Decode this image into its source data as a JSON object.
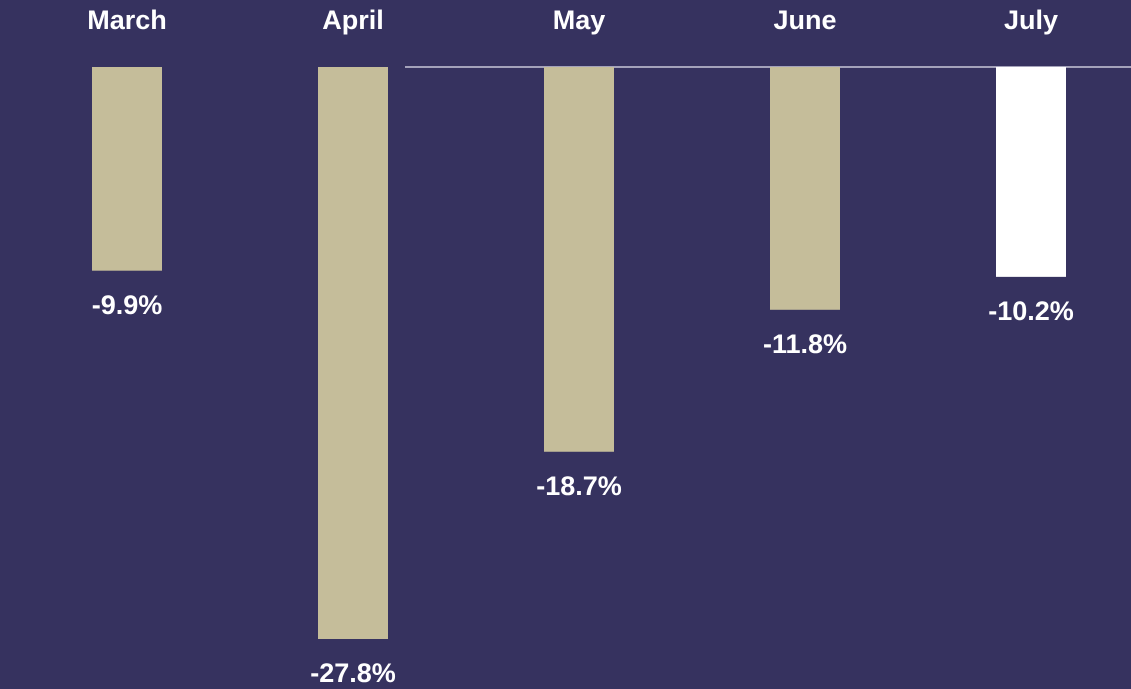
{
  "chart_data": {
    "type": "bar",
    "categories": [
      "March",
      "April",
      "May",
      "June",
      "July"
    ],
    "values": [
      -9.9,
      -27.8,
      -18.7,
      -11.8,
      -10.2
    ],
    "value_labels": [
      "-9.9%",
      "-27.8%",
      "-18.7%",
      "-11.8%",
      "-10.2%"
    ],
    "colors": [
      "#c5bd9a",
      "#c5bd9a",
      "#c5bd9a",
      "#c5bd9a",
      "#ffffff"
    ]
  }
}
